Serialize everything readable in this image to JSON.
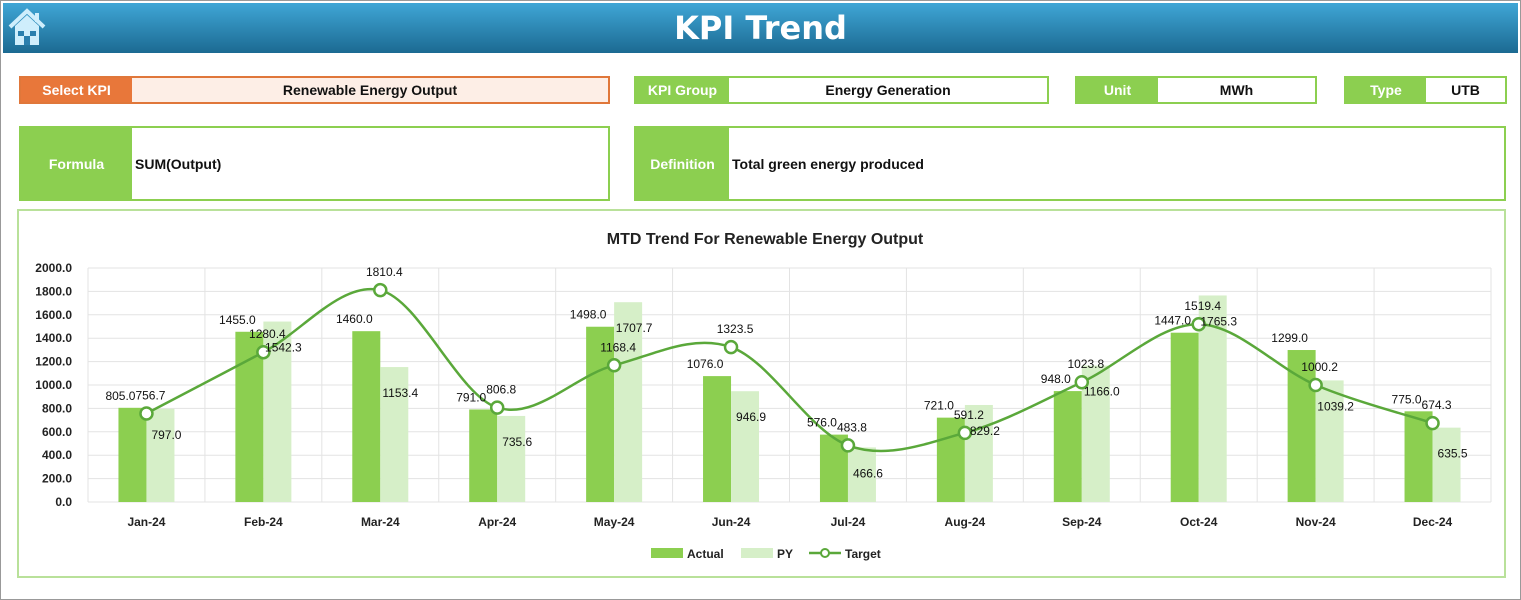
{
  "header": {
    "title": "KPI Trend",
    "home_icon": "home-icon"
  },
  "fields": {
    "select_kpi": {
      "label": "Select KPI",
      "value": "Renewable Energy Output"
    },
    "kpi_group": {
      "label": "KPI Group",
      "value": "Energy Generation"
    },
    "unit": {
      "label": "Unit",
      "value": "MWh"
    },
    "type": {
      "label": "Type",
      "value": "UTB"
    },
    "formula": {
      "label": "Formula",
      "value": "SUM(Output)"
    },
    "definition": {
      "label": "Definition",
      "value": "Total green energy produced"
    }
  },
  "colors": {
    "actual": "#8ccf50",
    "py": "#d6efc8",
    "target": "#5aa83a",
    "orange": "#e8773a",
    "header": "#2a88b8"
  },
  "chart_data": {
    "type": "bar",
    "title": "MTD Trend For Renewable Energy Output",
    "categories": [
      "Jan-24",
      "Feb-24",
      "Mar-24",
      "Apr-24",
      "May-24",
      "Jun-24",
      "Jul-24",
      "Aug-24",
      "Sep-24",
      "Oct-24",
      "Nov-24",
      "Dec-24"
    ],
    "series": [
      {
        "name": "Actual",
        "type": "bar",
        "values": [
          805.0,
          1455.0,
          1460.0,
          791.0,
          1498.0,
          1076.0,
          576.0,
          721.0,
          948.0,
          1447.0,
          1299.0,
          775.0
        ]
      },
      {
        "name": "PY",
        "type": "bar",
        "values": [
          797.0,
          1542.3,
          1153.4,
          735.6,
          1707.7,
          946.9,
          466.6,
          829.2,
          1166.0,
          1765.3,
          1039.2,
          635.5
        ]
      },
      {
        "name": "Target",
        "type": "line",
        "values": [
          756.7,
          1280.4,
          1810.4,
          806.8,
          1168.4,
          1323.5,
          483.8,
          591.2,
          1023.8,
          1519.4,
          1000.2,
          674.3
        ]
      }
    ],
    "yticks": [
      "0.0",
      "200.0",
      "400.0",
      "600.0",
      "800.0",
      "1000.0",
      "1200.0",
      "1400.0",
      "1600.0",
      "1800.0",
      "2000.0"
    ],
    "ylim": [
      0,
      2000
    ],
    "grid": true,
    "legend": "bottom"
  }
}
